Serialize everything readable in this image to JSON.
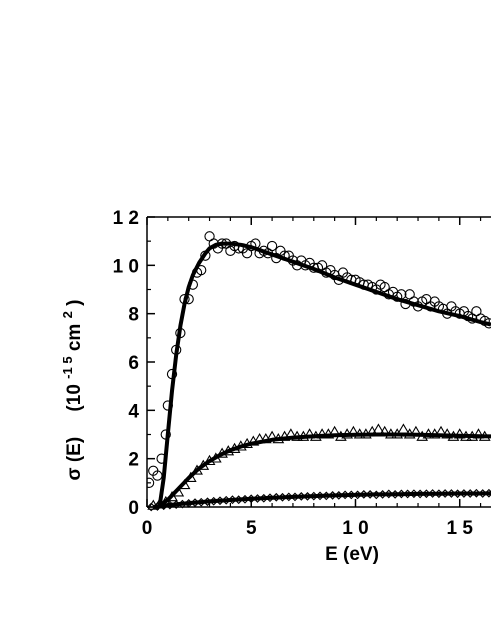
{
  "chart_data": {
    "type": "scatter",
    "xlabel": "E  (eV)",
    "ylabel": {
      "symbol": "σ (E)",
      "unit_prefix": "(10",
      "unit_exponent": "-1 5",
      "unit_mid": " cm",
      "unit_power": "2",
      "unit_suffix": ")"
    },
    "x_ticks": [
      {
        "value": 0,
        "label": "0"
      },
      {
        "value": 5,
        "label": "5"
      },
      {
        "value": 10,
        "label": "1 0"
      },
      {
        "value": 15,
        "label": "1 5"
      }
    ],
    "y_ticks": [
      {
        "value": 0,
        "label": "0"
      },
      {
        "value": 2,
        "label": "2"
      },
      {
        "value": 4,
        "label": "4"
      },
      {
        "value": 6,
        "label": "6"
      },
      {
        "value": 8,
        "label": "8"
      },
      {
        "value": 10,
        "label": "1 0"
      },
      {
        "value": 12,
        "label": "1 2"
      }
    ],
    "xlim": [
      0,
      16.5
    ],
    "ylim": [
      0,
      12
    ],
    "grid": false,
    "series": [
      {
        "marker": "circle",
        "x": [
          0.1,
          0.3,
          0.5,
          0.7,
          0.9,
          1.0,
          1.2,
          1.4,
          1.6,
          1.8,
          2.0,
          2.2,
          2.4,
          2.6,
          2.8,
          3.0,
          3.2,
          3.4,
          3.6,
          3.8,
          4.0,
          4.2,
          4.4,
          4.6,
          4.8,
          5.0,
          5.2,
          5.4,
          5.6,
          5.8,
          6.0,
          6.2,
          6.4,
          6.6,
          6.8,
          7.0,
          7.2,
          7.4,
          7.6,
          7.8,
          8.0,
          8.2,
          8.4,
          8.6,
          8.8,
          9.0,
          9.2,
          9.4,
          9.6,
          9.8,
          10.0,
          10.2,
          10.4,
          10.6,
          10.8,
          11.0,
          11.2,
          11.4,
          11.6,
          11.8,
          12.0,
          12.2,
          12.4,
          12.6,
          12.8,
          13.0,
          13.2,
          13.4,
          13.6,
          13.8,
          14.0,
          14.2,
          14.4,
          14.6,
          14.8,
          15.0,
          15.2,
          15.4,
          15.6,
          15.8,
          16.0,
          16.2,
          16.4
        ],
        "y": [
          1.0,
          1.5,
          1.3,
          2.0,
          3.0,
          4.2,
          5.5,
          6.5,
          7.2,
          8.6,
          8.6,
          9.2,
          9.7,
          9.8,
          10.4,
          11.2,
          10.9,
          10.7,
          10.9,
          10.9,
          10.6,
          10.8,
          10.7,
          10.7,
          10.5,
          10.8,
          10.9,
          10.5,
          10.6,
          10.5,
          10.8,
          10.3,
          10.6,
          10.4,
          10.4,
          10.2,
          10.0,
          10.2,
          10.0,
          10.1,
          9.9,
          9.9,
          10.0,
          9.7,
          9.8,
          9.6,
          9.4,
          9.7,
          9.5,
          9.4,
          9.4,
          9.3,
          9.2,
          9.2,
          9.1,
          9.0,
          9.2,
          9.1,
          8.8,
          8.9,
          8.7,
          8.8,
          8.4,
          8.8,
          8.5,
          8.3,
          8.5,
          8.6,
          8.3,
          8.5,
          8.3,
          8.2,
          8.0,
          8.3,
          8.1,
          8.0,
          8.1,
          7.9,
          7.8,
          8.1,
          7.8,
          7.7,
          7.6
        ]
      },
      {
        "marker": "triangle",
        "x": [
          0.3,
          0.6,
          0.9,
          1.2,
          1.5,
          1.8,
          2.1,
          2.4,
          2.7,
          3.0,
          3.3,
          3.6,
          3.9,
          4.2,
          4.5,
          4.8,
          5.1,
          5.4,
          5.7,
          6.0,
          6.3,
          6.6,
          6.9,
          7.2,
          7.5,
          7.8,
          8.1,
          8.4,
          8.7,
          9.0,
          9.3,
          9.6,
          9.9,
          10.2,
          10.5,
          10.8,
          11.1,
          11.4,
          11.7,
          12.0,
          12.3,
          12.6,
          12.9,
          13.2,
          13.5,
          13.8,
          14.1,
          14.4,
          14.7,
          15.0,
          15.3,
          15.6,
          15.9,
          16.2
        ],
        "y": [
          0.05,
          0.1,
          0.2,
          0.4,
          0.6,
          0.9,
          1.2,
          1.5,
          1.7,
          1.9,
          2.0,
          2.2,
          2.3,
          2.4,
          2.5,
          2.6,
          2.7,
          2.8,
          2.8,
          2.9,
          2.8,
          2.9,
          3.0,
          2.9,
          2.9,
          3.0,
          2.9,
          3.0,
          3.0,
          3.1,
          2.9,
          3.0,
          3.1,
          3.0,
          3.0,
          3.1,
          3.2,
          3.1,
          3.0,
          3.0,
          3.2,
          3.0,
          3.1,
          2.9,
          3.0,
          3.0,
          3.1,
          3.0,
          2.9,
          3.0,
          2.9,
          2.9,
          3.0,
          2.9
        ]
      },
      {
        "marker": "diamond",
        "x": [
          0.2,
          0.5,
          0.8,
          1.1,
          1.4,
          1.7,
          2.0,
          2.3,
          2.6,
          2.9,
          3.2,
          3.5,
          3.8,
          4.1,
          4.4,
          4.7,
          5.0,
          5.3,
          5.6,
          5.9,
          6.2,
          6.5,
          6.8,
          7.1,
          7.4,
          7.7,
          8.0,
          8.3,
          8.6,
          8.9,
          9.2,
          9.5,
          9.8,
          10.1,
          10.4,
          10.7,
          11.0,
          11.3,
          11.6,
          11.9,
          12.2,
          12.5,
          12.8,
          13.1,
          13.4,
          13.7,
          14.0,
          14.3,
          14.6,
          14.9,
          15.2,
          15.5,
          15.8,
          16.1,
          16.4
        ],
        "y": [
          0.0,
          0.02,
          0.05,
          0.08,
          0.1,
          0.12,
          0.15,
          0.18,
          0.2,
          0.22,
          0.24,
          0.26,
          0.28,
          0.3,
          0.3,
          0.32,
          0.34,
          0.35,
          0.36,
          0.38,
          0.4,
          0.4,
          0.42,
          0.42,
          0.44,
          0.44,
          0.45,
          0.46,
          0.46,
          0.48,
          0.48,
          0.5,
          0.5,
          0.5,
          0.52,
          0.52,
          0.5,
          0.52,
          0.54,
          0.52,
          0.54,
          0.54,
          0.55,
          0.54,
          0.55,
          0.56,
          0.55,
          0.56,
          0.56,
          0.55,
          0.56,
          0.56,
          0.57,
          0.56,
          0.57
        ]
      }
    ],
    "fits": [
      {
        "x": [
          0.6,
          0.8,
          1.0,
          1.2,
          1.4,
          1.6,
          1.8,
          2.0,
          2.2,
          2.5,
          2.8,
          3.0,
          3.3,
          3.6,
          4.0,
          4.5,
          5.0,
          5.5,
          6.0,
          7.0,
          8.0,
          9.0,
          10.0,
          11.0,
          12.0,
          13.0,
          14.0,
          15.0,
          16.0,
          16.5
        ],
        "y": [
          0.0,
          1.2,
          3.0,
          4.8,
          6.3,
          7.5,
          8.4,
          9.1,
          9.6,
          10.1,
          10.5,
          10.7,
          10.85,
          10.9,
          10.9,
          10.85,
          10.75,
          10.6,
          10.45,
          10.15,
          9.85,
          9.5,
          9.2,
          8.9,
          8.6,
          8.35,
          8.1,
          7.9,
          7.65,
          7.55
        ]
      },
      {
        "x": [
          0.5,
          1.0,
          1.5,
          2.0,
          2.5,
          3.0,
          3.5,
          4.0,
          4.5,
          5.0,
          6.0,
          7.0,
          8.0,
          9.0,
          10.0,
          11.0,
          12.0,
          13.0,
          14.0,
          15.0,
          16.0,
          16.5
        ],
        "y": [
          0.0,
          0.3,
          0.75,
          1.2,
          1.6,
          1.9,
          2.15,
          2.35,
          2.5,
          2.62,
          2.78,
          2.87,
          2.93,
          2.97,
          2.99,
          3.0,
          3.0,
          2.99,
          2.97,
          2.95,
          2.93,
          2.92
        ]
      },
      {
        "x": [
          0.3,
          1.0,
          2.0,
          3.0,
          4.0,
          5.0,
          6.0,
          7.0,
          8.0,
          9.0,
          10.0,
          11.0,
          12.0,
          13.0,
          14.0,
          15.0,
          16.0,
          16.5
        ],
        "y": [
          0.0,
          0.08,
          0.16,
          0.23,
          0.29,
          0.34,
          0.38,
          0.42,
          0.45,
          0.48,
          0.5,
          0.52,
          0.53,
          0.54,
          0.55,
          0.56,
          0.56,
          0.57
        ]
      }
    ]
  }
}
